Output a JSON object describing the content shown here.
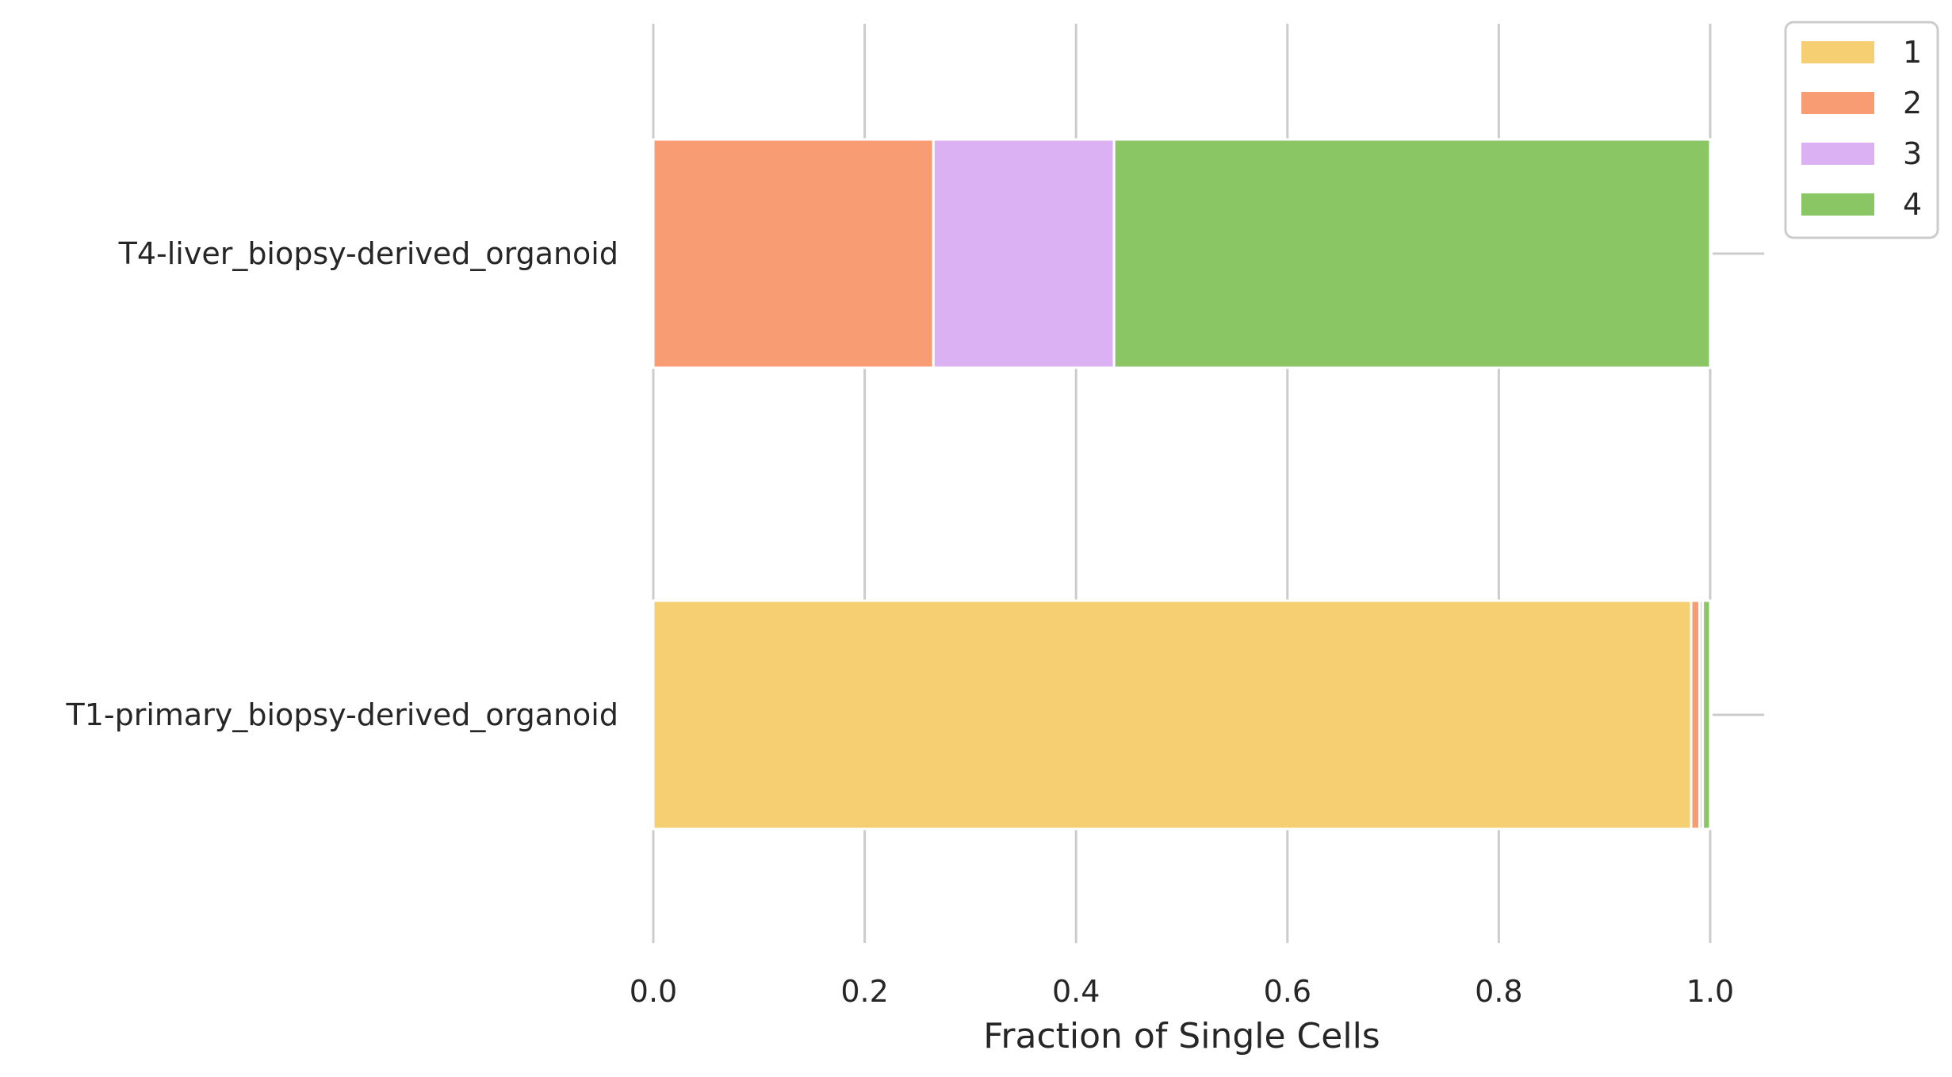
{
  "chart_data": {
    "type": "bar",
    "orientation": "horizontal",
    "stacked": true,
    "categories": [
      "T4-liver_biopsy-derived_organoid",
      "T1-primary_biopsy-derived_organoid"
    ],
    "series": [
      {
        "name": "1",
        "color": "#f5cf72",
        "values": [
          0.0,
          0.982
        ]
      },
      {
        "name": "2",
        "color": "#f89c73",
        "values": [
          0.265,
          0.008
        ]
      },
      {
        "name": "3",
        "color": "#dbb1f3",
        "values": [
          0.171,
          0.003
        ]
      },
      {
        "name": "4",
        "color": "#8ac663",
        "values": [
          0.564,
          0.007
        ]
      }
    ],
    "xlabel": "Fraction of Single Cells",
    "ylabel": "",
    "xlim": [
      0.0,
      1.0
    ],
    "xticks": [
      "0.0",
      "0.2",
      "0.4",
      "0.6",
      "0.8",
      "1.0"
    ],
    "grid": true,
    "legend_position": "top-right outside"
  }
}
